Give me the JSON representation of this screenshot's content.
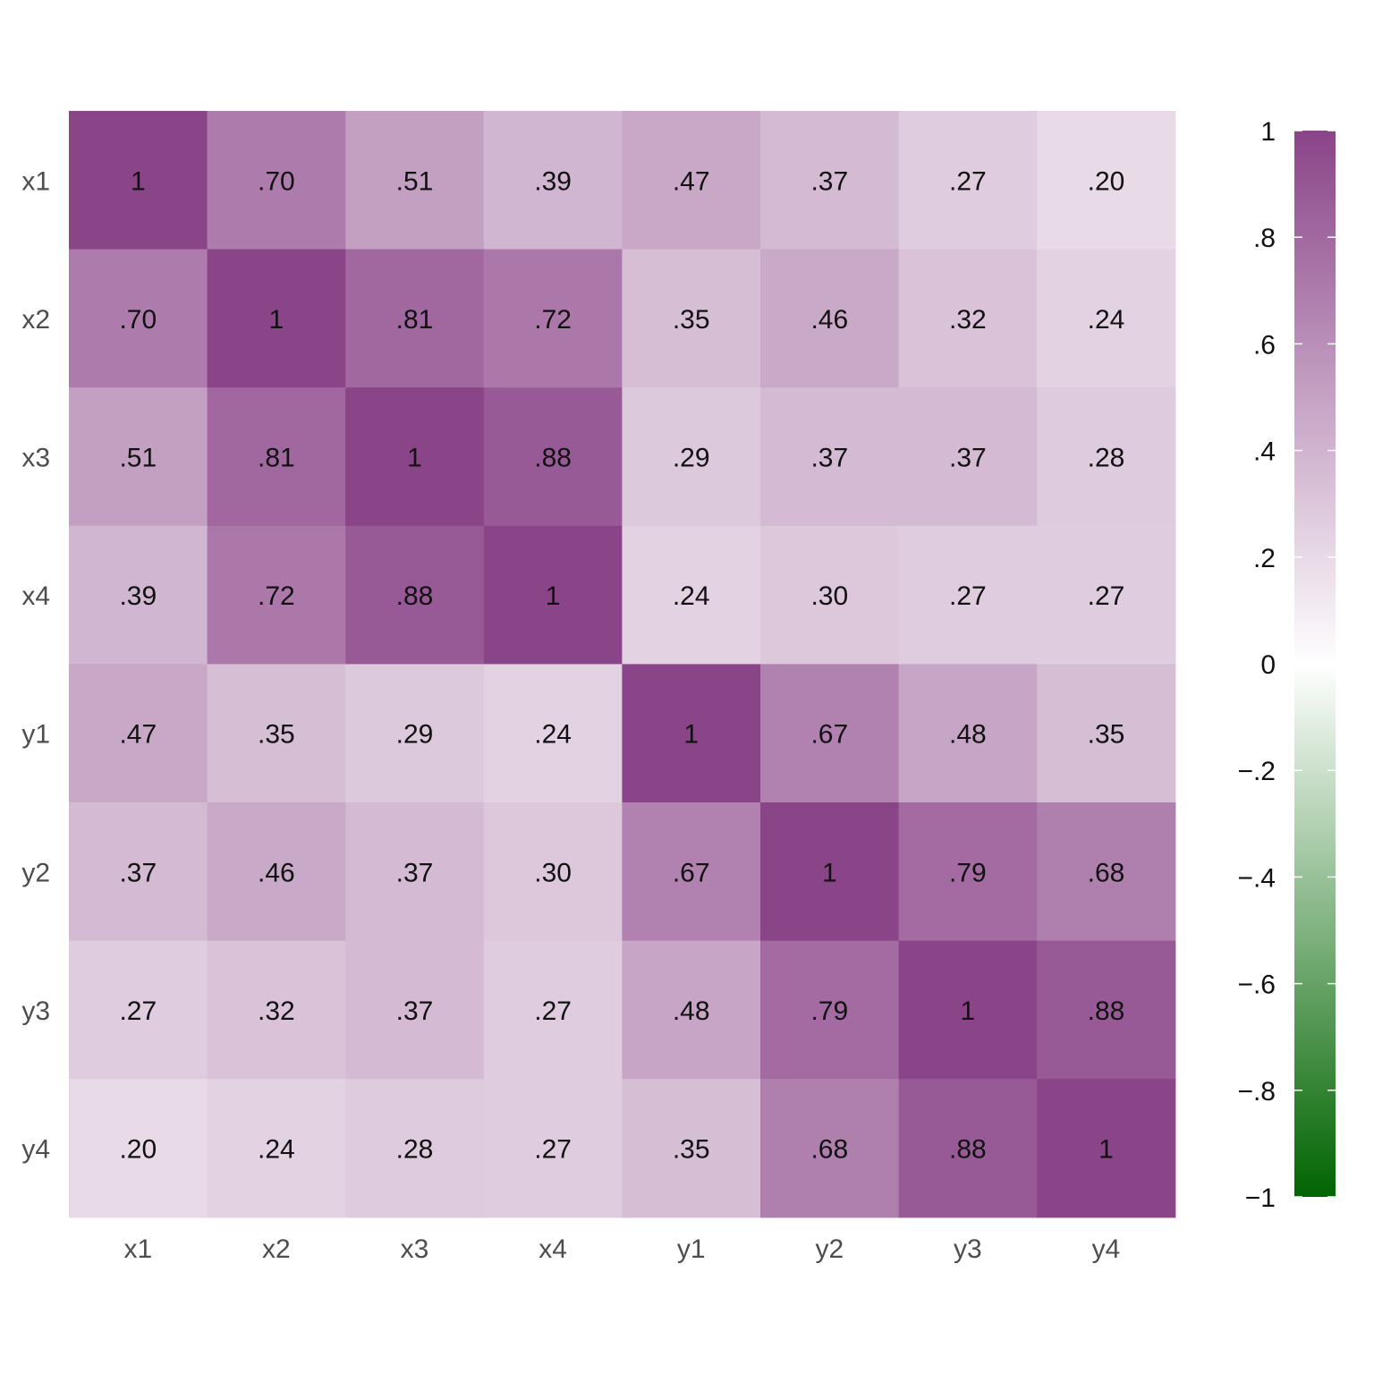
{
  "chart_data": {
    "type": "heatmap",
    "rows": [
      "x1",
      "x2",
      "x3",
      "x4",
      "y1",
      "y2",
      "y3",
      "y4"
    ],
    "columns": [
      "x1",
      "x2",
      "x3",
      "x4",
      "y1",
      "y2",
      "y3",
      "y4"
    ],
    "values": [
      [
        1,
        0.7,
        0.51,
        0.39,
        0.47,
        0.37,
        0.27,
        0.2
      ],
      [
        0.7,
        1,
        0.81,
        0.72,
        0.35,
        0.46,
        0.32,
        0.24
      ],
      [
        0.51,
        0.81,
        1,
        0.88,
        0.29,
        0.37,
        0.37,
        0.28
      ],
      [
        0.39,
        0.72,
        0.88,
        1,
        0.24,
        0.3,
        0.27,
        0.27
      ],
      [
        0.47,
        0.35,
        0.29,
        0.24,
        1,
        0.67,
        0.48,
        0.35
      ],
      [
        0.37,
        0.46,
        0.37,
        0.3,
        0.67,
        1,
        0.79,
        0.68
      ],
      [
        0.27,
        0.32,
        0.37,
        0.27,
        0.48,
        0.79,
        1,
        0.88
      ],
      [
        0.2,
        0.24,
        0.28,
        0.27,
        0.35,
        0.68,
        0.88,
        1
      ]
    ],
    "cell_labels": [
      [
        "1",
        ".70",
        ".51",
        ".39",
        ".47",
        ".37",
        ".27",
        ".20"
      ],
      [
        ".70",
        "1",
        ".81",
        ".72",
        ".35",
        ".46",
        ".32",
        ".24"
      ],
      [
        ".51",
        ".81",
        "1",
        ".88",
        ".29",
        ".37",
        ".37",
        ".28"
      ],
      [
        ".39",
        ".72",
        ".88",
        "1",
        ".24",
        ".30",
        ".27",
        ".27"
      ],
      [
        ".47",
        ".35",
        ".29",
        ".24",
        "1",
        ".67",
        ".48",
        ".35"
      ],
      [
        ".37",
        ".46",
        ".37",
        ".30",
        ".67",
        "1",
        ".79",
        ".68"
      ],
      [
        ".27",
        ".32",
        ".37",
        ".27",
        ".48",
        ".79",
        "1",
        ".88"
      ],
      [
        ".20",
        ".24",
        ".28",
        ".27",
        ".35",
        ".68",
        ".88",
        "1"
      ]
    ],
    "colorbar": {
      "range": [
        -1,
        1
      ],
      "ticks": [
        1,
        0.8,
        0.6,
        0.4,
        0.2,
        0,
        -0.2,
        -0.4,
        -0.6,
        -0.8,
        -1
      ],
      "tick_labels": [
        "1",
        ".8",
        ".6",
        ".4",
        ".2",
        "0",
        "−.2",
        "−.4",
        "−.6",
        "−.8",
        "−1"
      ],
      "high_color": "#8a4488",
      "mid_color": "#ffffff",
      "low_color": "#006400"
    },
    "legend_placement": "right",
    "grid": false
  }
}
